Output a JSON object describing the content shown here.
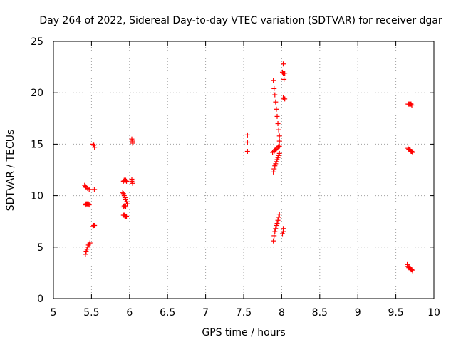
{
  "chart_data": {
    "type": "scatter",
    "title": "Day 264 of 2022, Sidereal Day-to-day VTEC variation (SDTVAR) for receiver dgar",
    "xlabel": "GPS time / hours",
    "ylabel": "SDTVAR / TECUs",
    "xlim": [
      5,
      10
    ],
    "ylim": [
      0,
      25
    ],
    "xticks": [
      "5",
      "5.5",
      "6",
      "6.5",
      "7",
      "7.5",
      "8",
      "8.5",
      "9",
      "9.5",
      "10"
    ],
    "yticks": [
      "0",
      "5",
      "10",
      "15",
      "20",
      "25"
    ],
    "grid": true,
    "marker": "+",
    "color": "#ff0000",
    "series": [
      {
        "name": "SDTVAR",
        "points": [
          [
            5.41,
            11.0
          ],
          [
            5.42,
            10.9
          ],
          [
            5.43,
            10.8
          ],
          [
            5.45,
            10.7
          ],
          [
            5.47,
            10.6
          ],
          [
            5.52,
            10.6
          ],
          [
            5.54,
            10.6
          ],
          [
            5.42,
            9.1
          ],
          [
            5.43,
            9.2
          ],
          [
            5.44,
            9.2
          ],
          [
            5.45,
            9.2
          ],
          [
            5.46,
            9.2
          ],
          [
            5.47,
            9.1
          ],
          [
            5.42,
            4.3
          ],
          [
            5.43,
            4.6
          ],
          [
            5.44,
            4.8
          ],
          [
            5.45,
            5.0
          ],
          [
            5.46,
            5.2
          ],
          [
            5.47,
            5.3
          ],
          [
            5.48,
            5.4
          ],
          [
            5.52,
            7.0
          ],
          [
            5.53,
            7.1
          ],
          [
            5.54,
            7.1
          ],
          [
            5.52,
            15.0
          ],
          [
            5.53,
            14.9
          ],
          [
            5.54,
            14.7
          ],
          [
            5.91,
            10.3
          ],
          [
            5.92,
            10.2
          ],
          [
            5.93,
            10.0
          ],
          [
            5.94,
            9.8
          ],
          [
            5.95,
            9.6
          ],
          [
            5.96,
            9.4
          ],
          [
            5.97,
            9.2
          ],
          [
            5.92,
            11.4
          ],
          [
            5.93,
            11.5
          ],
          [
            5.94,
            11.5
          ],
          [
            5.95,
            11.5
          ],
          [
            5.96,
            11.4
          ],
          [
            5.92,
            8.9
          ],
          [
            5.93,
            9.0
          ],
          [
            5.94,
            9.0
          ],
          [
            5.95,
            8.9
          ],
          [
            5.92,
            8.1
          ],
          [
            5.93,
            8.1
          ],
          [
            5.94,
            8.0
          ],
          [
            5.95,
            8.0
          ],
          [
            5.96,
            8.0
          ],
          [
            6.03,
            11.6
          ],
          [
            6.03,
            11.4
          ],
          [
            6.04,
            11.2
          ],
          [
            6.03,
            15.5
          ],
          [
            6.04,
            15.3
          ],
          [
            6.04,
            15.1
          ],
          [
            7.55,
            15.9
          ],
          [
            7.55,
            15.2
          ],
          [
            7.55,
            14.3
          ],
          [
            7.89,
            21.2
          ],
          [
            7.9,
            20.4
          ],
          [
            7.91,
            19.8
          ],
          [
            7.92,
            19.1
          ],
          [
            7.93,
            18.4
          ],
          [
            7.94,
            17.7
          ],
          [
            7.95,
            17.0
          ],
          [
            7.96,
            16.4
          ],
          [
            7.97,
            15.8
          ],
          [
            7.97,
            15.3
          ],
          [
            7.88,
            14.2
          ],
          [
            7.9,
            14.3
          ],
          [
            7.91,
            14.4
          ],
          [
            7.92,
            14.5
          ],
          [
            7.93,
            14.6
          ],
          [
            7.95,
            14.7
          ],
          [
            7.96,
            14.8
          ],
          [
            7.97,
            14.8
          ],
          [
            7.89,
            12.3
          ],
          [
            7.9,
            12.6
          ],
          [
            7.91,
            12.9
          ],
          [
            7.92,
            13.1
          ],
          [
            7.93,
            13.3
          ],
          [
            7.94,
            13.5
          ],
          [
            7.95,
            13.7
          ],
          [
            7.96,
            13.9
          ],
          [
            7.97,
            14.1
          ],
          [
            7.89,
            5.6
          ],
          [
            7.9,
            6.1
          ],
          [
            7.91,
            6.5
          ],
          [
            7.92,
            6.8
          ],
          [
            7.93,
            7.1
          ],
          [
            7.94,
            7.3
          ],
          [
            7.95,
            7.6
          ],
          [
            7.96,
            7.9
          ],
          [
            7.97,
            8.2
          ],
          [
            8.01,
            6.3
          ],
          [
            8.02,
            6.5
          ],
          [
            8.02,
            6.8
          ],
          [
            8.02,
            22.8
          ],
          [
            8.01,
            22.0
          ],
          [
            8.02,
            21.9
          ],
          [
            8.03,
            21.9
          ],
          [
            8.04,
            21.9
          ],
          [
            8.03,
            21.3
          ],
          [
            8.02,
            19.5
          ],
          [
            8.03,
            19.4
          ],
          [
            8.04,
            19.4
          ],
          [
            9.66,
            18.9
          ],
          [
            9.67,
            18.9
          ],
          [
            9.68,
            18.9
          ],
          [
            9.69,
            18.9
          ],
          [
            9.7,
            18.9
          ],
          [
            9.71,
            18.8
          ],
          [
            9.66,
            14.6
          ],
          [
            9.67,
            14.5
          ],
          [
            9.68,
            14.5
          ],
          [
            9.69,
            14.4
          ],
          [
            9.7,
            14.3
          ],
          [
            9.71,
            14.3
          ],
          [
            9.72,
            14.2
          ],
          [
            9.65,
            3.3
          ],
          [
            9.66,
            3.1
          ],
          [
            9.67,
            3.0
          ],
          [
            9.68,
            3.0
          ],
          [
            9.69,
            2.9
          ],
          [
            9.7,
            2.8
          ],
          [
            9.71,
            2.8
          ],
          [
            9.72,
            2.7
          ]
        ]
      }
    ]
  }
}
